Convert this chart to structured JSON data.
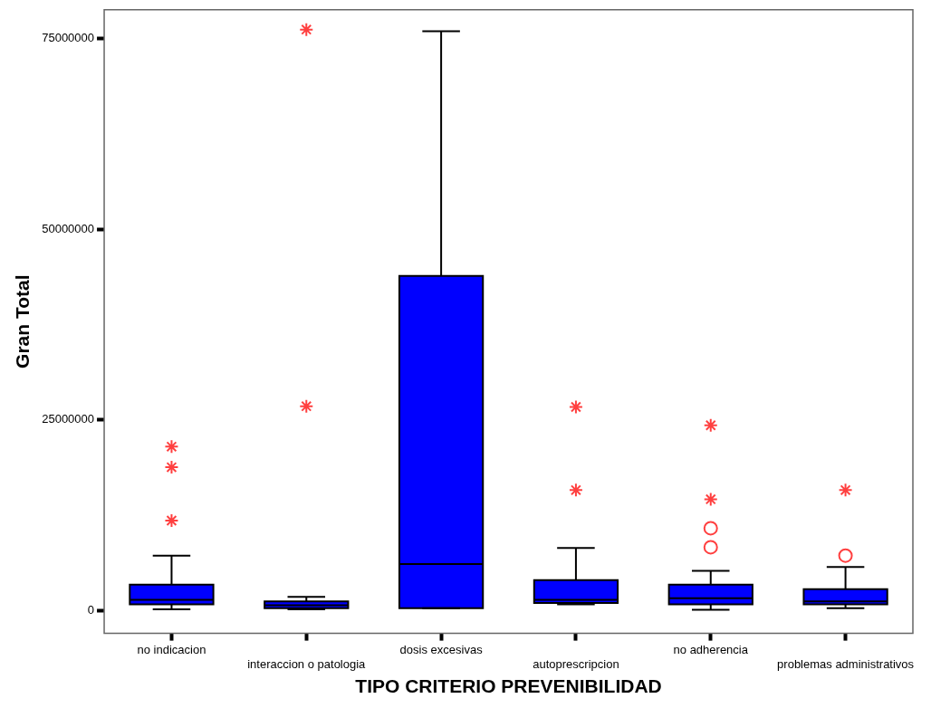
{
  "chart_data": {
    "type": "box",
    "xlabel": "TIPO CRITERIO PREVENIBILIDAD",
    "ylabel": "Gran Total",
    "categories": [
      "no indicacion",
      "interaccion o patologia",
      "dosis excesivas",
      "autoprescripcion",
      "no adherencia",
      "problemas administrativos"
    ],
    "color": "#0000ff",
    "boxes": [
      {
        "low": 150000,
        "q1": 800000,
        "median": 1400000,
        "q3": 3400000,
        "high": 7200000,
        "outliers": [
          21500000,
          18800000,
          11800000
        ]
      },
      {
        "low": 150000,
        "q1": 300000,
        "median": 700000,
        "q3": 1200000,
        "high": 1800000,
        "outliers": [
          76200000,
          26800000
        ]
      },
      {
        "low": 300000,
        "q1": 300000,
        "median": 6100000,
        "q3": 43900000,
        "high": 76000000
      },
      {
        "low": 800000,
        "q1": 1000000,
        "median": 1400000,
        "q3": 4000000,
        "high": 8200000,
        "outliers": [
          26700000,
          15800000
        ]
      },
      {
        "low": 100000,
        "q1": 800000,
        "median": 1600000,
        "q3": 3400000,
        "high": 5200000,
        "outliers": [
          24300000,
          14600000
        ]
      },
      {
        "low": 300000,
        "q1": 800000,
        "median": 1200000,
        "q3": 2800000,
        "high": 5700000,
        "outliers": [
          15800000
        ]
      }
    ],
    "series": [
      {
        "type": "scatter",
        "color": "#ff4040",
        "marker": "circle",
        "x": [
          "no adherencia",
          "no adherencia",
          "problemas administrativos"
        ],
        "values": [
          10800000,
          8300000,
          7200000
        ]
      }
    ],
    "marker": "star",
    "ylim": [
      -3000000,
      78800000
    ],
    "yticks": [
      0,
      25000000,
      50000000,
      75000000
    ],
    "grid": false,
    "legend": false
  }
}
